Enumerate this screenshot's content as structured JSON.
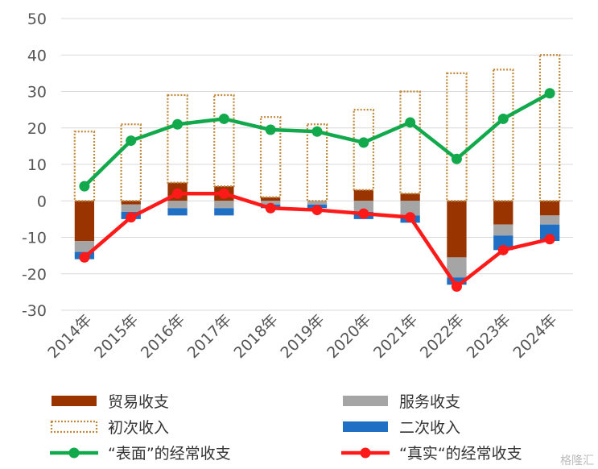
{
  "chart_data": {
    "type": "bar",
    "categories": [
      "2014年",
      "2015年",
      "2016年",
      "2017年",
      "2018年",
      "2019年",
      "2020年",
      "2021年",
      "2022年",
      "2023年",
      "2024年"
    ],
    "ylim": [
      -30,
      50
    ],
    "yticks": [
      -30,
      -20,
      -10,
      0,
      10,
      20,
      30,
      40,
      50
    ],
    "grid": true,
    "legend_position": "bottom",
    "series": [
      {
        "name": "贸易收支",
        "kind": "stacked-bar",
        "color": "#993300",
        "values": [
          -11,
          -1,
          5,
          4,
          1,
          0,
          3,
          2,
          -15.5,
          -6.5,
          -4
        ]
      },
      {
        "name": "服务收支",
        "kind": "stacked-bar",
        "color": "#a5a5a5",
        "values": [
          -3,
          -2,
          -2,
          -2,
          -1,
          -1,
          -3,
          -4,
          -5.5,
          -3,
          -2.5
        ]
      },
      {
        "name": "初次收入",
        "kind": "outline-bar",
        "color": "#c08a3a",
        "values": [
          19,
          21,
          24,
          25,
          22,
          21,
          22,
          28,
          35,
          36,
          40
        ]
      },
      {
        "name": "二次收入",
        "kind": "stacked-bar",
        "color": "#1f6fc5",
        "values": [
          -2,
          -2,
          -2,
          -2,
          -1,
          -1,
          -2,
          -2,
          -2,
          -4,
          -4.5
        ]
      },
      {
        "name": "“表面”的经常收支",
        "kind": "line",
        "color": "#12a94c",
        "values": [
          4,
          16.5,
          21,
          22.5,
          19.5,
          19,
          16,
          21.5,
          11.5,
          22.5,
          29.5
        ]
      },
      {
        "name": "“真实“的经常收支",
        "kind": "line",
        "color": "#ff1a1a",
        "values": [
          -15.5,
          -4.5,
          2,
          2,
          -2,
          -2.5,
          -3.5,
          -4.5,
          -23.5,
          -13.5,
          -10.5
        ]
      }
    ]
  },
  "watermark": "格隆汇"
}
